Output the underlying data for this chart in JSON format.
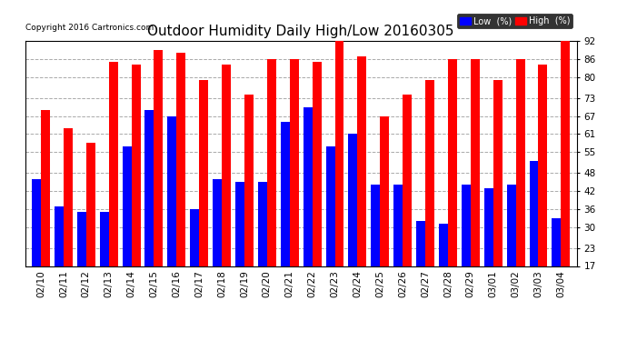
{
  "title": "Outdoor Humidity Daily High/Low 20160305",
  "copyright": "Copyright 2016 Cartronics.com",
  "dates": [
    "02/10",
    "02/11",
    "02/12",
    "02/13",
    "02/14",
    "02/15",
    "02/16",
    "02/17",
    "02/18",
    "02/19",
    "02/20",
    "02/21",
    "02/22",
    "02/23",
    "02/24",
    "02/25",
    "02/26",
    "02/27",
    "02/28",
    "02/29",
    "03/01",
    "03/02",
    "03/03",
    "03/04"
  ],
  "high": [
    69,
    63,
    58,
    85,
    84,
    89,
    88,
    79,
    84,
    74,
    86,
    86,
    85,
    94,
    87,
    67,
    74,
    79,
    86,
    86,
    79,
    86,
    84,
    93
  ],
  "low": [
    46,
    37,
    35,
    35,
    57,
    69,
    67,
    36,
    46,
    45,
    45,
    65,
    70,
    57,
    61,
    44,
    44,
    32,
    31,
    44,
    43,
    44,
    52,
    33
  ],
  "ylim": [
    17,
    92
  ],
  "yticks": [
    17,
    23,
    30,
    36,
    42,
    48,
    55,
    61,
    67,
    73,
    80,
    86,
    92
  ],
  "low_color": "#0000ff",
  "high_color": "#ff0000",
  "bg_color": "#ffffff",
  "plot_bg_color": "#ffffff",
  "grid_color": "#aaaaaa",
  "title_fontsize": 11,
  "tick_fontsize": 7.5,
  "legend_low_label": "Low  (%)",
  "legend_high_label": "High  (%)",
  "bar_width": 0.4
}
